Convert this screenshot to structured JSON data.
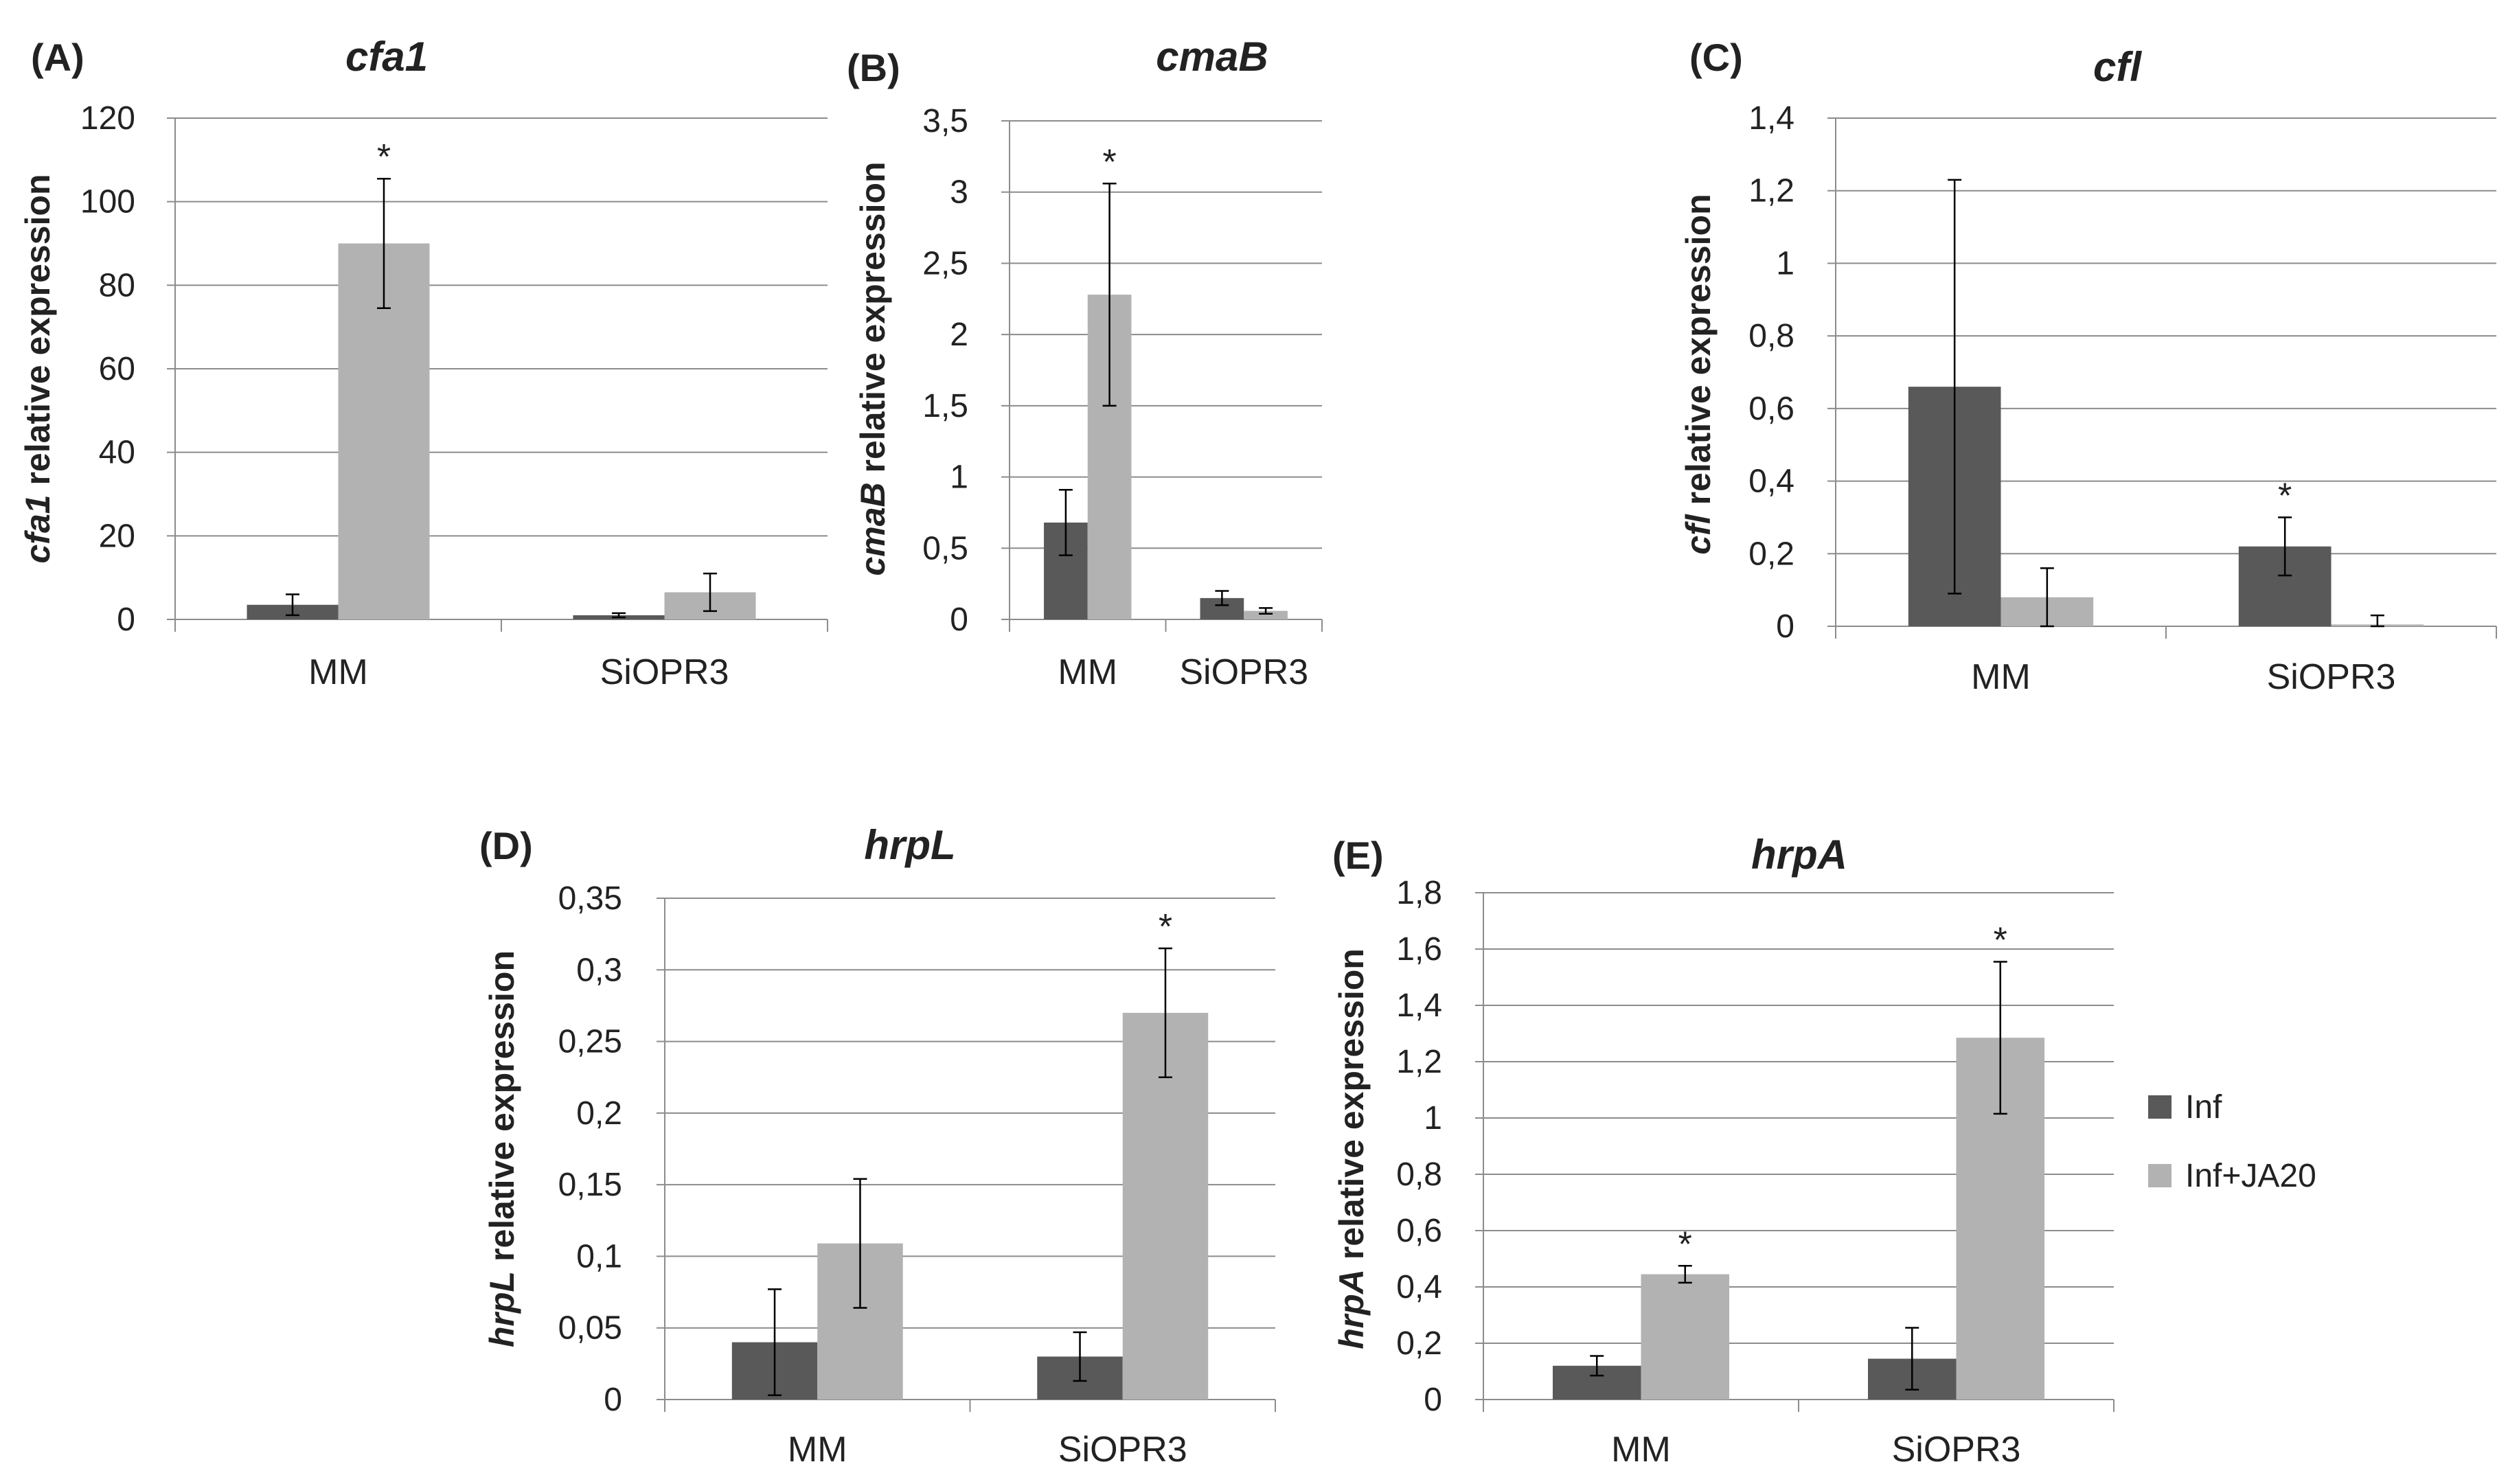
{
  "series_info": [
    {
      "name": "Inf",
      "color": "#595959"
    },
    {
      "name": "Inf+JA20",
      "color": "#b2b2b2"
    }
  ],
  "chart_data": [
    {
      "type": "bar",
      "panel": "(A)",
      "title": "cfa1",
      "ylabel_gene": "cfa1",
      "ylabel_rest": " relative expression",
      "categories": [
        "MM",
        "SiOPR3"
      ],
      "ylim": [
        0,
        120
      ],
      "ticks": [
        0,
        20,
        40,
        60,
        80,
        100,
        120
      ],
      "tick_labels": [
        "0",
        "20",
        "40",
        "60",
        "80",
        "100",
        "120"
      ],
      "series": [
        {
          "name": "Inf",
          "values": [
            3.5,
            1
          ],
          "errors": [
            2.5,
            0.5
          ],
          "stars": [
            false,
            false
          ]
        },
        {
          "name": "Inf+JA20",
          "values": [
            90,
            6.5
          ],
          "errors": [
            15.5,
            4.5
          ],
          "stars": [
            true,
            false
          ]
        }
      ],
      "star_label": "*"
    },
    {
      "type": "bar",
      "panel": "(B)",
      "title": "cmaB",
      "ylabel_gene": "cmaB",
      "ylabel_rest": " relative expression",
      "categories": [
        "MM",
        "SiOPR3"
      ],
      "ylim": [
        0,
        3.5
      ],
      "ticks": [
        0,
        0.5,
        1,
        1.5,
        2,
        2.5,
        3,
        3.5
      ],
      "tick_labels": [
        "0",
        "0,5",
        "1",
        "1,5",
        "2",
        "2,5",
        "3",
        "3,5"
      ],
      "series": [
        {
          "name": "Inf",
          "values": [
            0.68,
            0.15
          ],
          "errors": [
            0.23,
            0.05
          ],
          "stars": [
            false,
            false
          ]
        },
        {
          "name": "Inf+JA20",
          "values": [
            2.28,
            0.06
          ],
          "errors": [
            0.78,
            0.02
          ],
          "stars": [
            true,
            false
          ]
        }
      ],
      "star_label": "*"
    },
    {
      "type": "bar",
      "panel": "(C)",
      "title": "cfl",
      "ylabel_gene": "cfl",
      "ylabel_rest": " relative expression",
      "categories": [
        "MM",
        "SiOPR3"
      ],
      "ylim": [
        0,
        1.4
      ],
      "ticks": [
        0,
        0.2,
        0.4,
        0.6,
        0.8,
        1,
        1.2,
        1.4
      ],
      "tick_labels": [
        "0",
        "0,2",
        "0,4",
        "0,6",
        "0,8",
        "1",
        "1,2",
        "1,4"
      ],
      "series": [
        {
          "name": "Inf",
          "values": [
            0.66,
            0.22
          ],
          "errors": [
            0.57,
            0.08
          ],
          "stars": [
            false,
            true
          ]
        },
        {
          "name": "Inf+JA20",
          "values": [
            0.08,
            0.005
          ],
          "errors": [
            0.08,
            0.025
          ],
          "stars": [
            false,
            false
          ]
        }
      ],
      "star_label": "*"
    },
    {
      "type": "bar",
      "panel": "(D)",
      "title": "hrpL",
      "ylabel_gene": "hrpL",
      "ylabel_rest": " relative expression",
      "categories": [
        "MM",
        "SiOPR3"
      ],
      "ylim": [
        0,
        0.35
      ],
      "ticks": [
        0,
        0.05,
        0.1,
        0.15,
        0.2,
        0.25,
        0.3,
        0.35
      ],
      "tick_labels": [
        "0",
        "0,05",
        "0,1",
        "0,15",
        "0,2",
        "0,25",
        "0,3",
        "0,35"
      ],
      "series": [
        {
          "name": "Inf",
          "values": [
            0.04,
            0.03
          ],
          "errors": [
            0.037,
            0.017
          ],
          "stars": [
            false,
            false
          ]
        },
        {
          "name": "Inf+JA20",
          "values": [
            0.109,
            0.27
          ],
          "errors": [
            0.045,
            0.045
          ],
          "stars": [
            false,
            true
          ]
        }
      ],
      "star_label": "*"
    },
    {
      "type": "bar",
      "panel": "(E)",
      "title": "hrpA",
      "ylabel_gene": "hrpA",
      "ylabel_rest": " relative expression",
      "categories": [
        "MM",
        "SiOPR3"
      ],
      "ylim": [
        0,
        1.8
      ],
      "ticks": [
        0,
        0.2,
        0.4,
        0.6,
        0.8,
        1,
        1.2,
        1.4,
        1.6,
        1.8
      ],
      "tick_labels": [
        "0",
        "0,2",
        "0,4",
        "0,6",
        "0,8",
        "1",
        "1,2",
        "1,4",
        "1,6",
        "1,8"
      ],
      "series": [
        {
          "name": "Inf",
          "values": [
            0.12,
            0.145
          ],
          "errors": [
            0.035,
            0.11
          ],
          "stars": [
            false,
            false
          ]
        },
        {
          "name": "Inf+JA20",
          "values": [
            0.445,
            1.285
          ],
          "errors": [
            0.03,
            0.27
          ],
          "stars": [
            true,
            true
          ]
        }
      ],
      "star_label": "*"
    }
  ]
}
